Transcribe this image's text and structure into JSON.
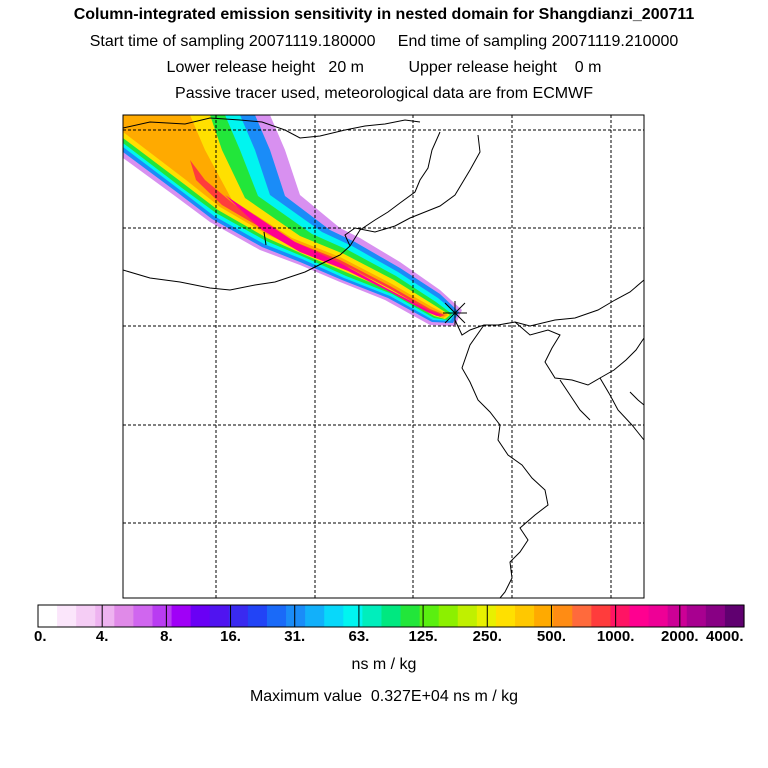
{
  "header": {
    "title": "Column-integrated emission sensitivity in nested domain for Shangdianzi_200711",
    "sampling": "Start time of sampling 20071119.180000     End time of sampling 20071119.210000",
    "release": "Lower release height   20 m          Upper release height    0 m",
    "tracer": "Passive tracer used, meteorological data are from ECMWF"
  },
  "colorbar": {
    "colors": [
      "#ffffff",
      "#fbe6fb",
      "#f5cdf5",
      "#eeb3f0",
      "#e08ae8",
      "#d066ef",
      "#b93cf2",
      "#a000f7",
      "#6a00f5",
      "#5014f0",
      "#3a2af0",
      "#2244f6",
      "#1a6af8",
      "#1a8cf8",
      "#12b0fa",
      "#08d8fa",
      "#00f5f0",
      "#00eebc",
      "#00e880",
      "#22e63a",
      "#5aef10",
      "#8cf000",
      "#c0f000",
      "#e8f000",
      "#ffe000",
      "#ffc800",
      "#ffaa00",
      "#ff8c14",
      "#ff6a3c",
      "#ff3c3c",
      "#ff1464",
      "#ff0090",
      "#ee0096",
      "#cc0096",
      "#a80090",
      "#880084",
      "#600070"
    ],
    "major_labels": [
      "0.",
      "4.",
      "8.",
      "16.",
      "31.",
      "63.",
      "125.",
      "250.",
      "500.",
      "1000.",
      "2000.",
      "4000."
    ],
    "unit": "ns m / kg"
  },
  "max_value_line": "Maximum value  0.327E+04 ns m / kg",
  "receptor": {
    "name": "Shangdianzi",
    "marker": "x-cross-icon"
  },
  "colors": {
    "grid": "#000000",
    "coast": "#000000",
    "frame": "#000000"
  }
}
